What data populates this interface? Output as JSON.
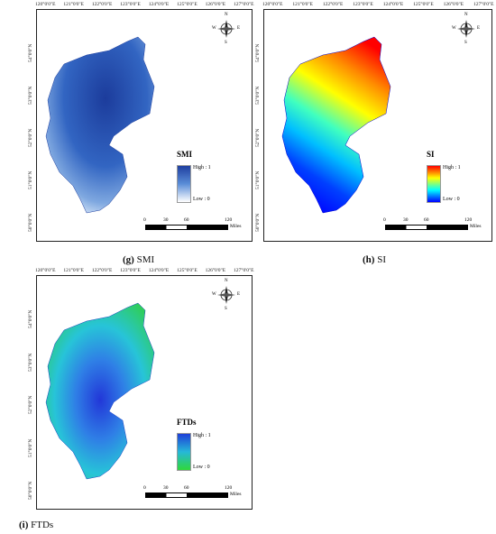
{
  "panels": [
    {
      "id": "g",
      "caption_letter": "(g)",
      "caption_text": " SMI",
      "legend_title": "SMI",
      "legend_high": "High : 1",
      "legend_low": "Low : 0",
      "colors": {
        "high": "#1f3fa0",
        "mid": "#5b8ed8",
        "low": "#ffffff"
      }
    },
    {
      "id": "h",
      "caption_letter": "(h)",
      "caption_text": " SI",
      "legend_title": "SI",
      "legend_high": "High : 1",
      "legend_low": "Low : 0",
      "colors": {
        "high": "#ff0000",
        "mid": "#ffff00",
        "low": "#0000ff"
      }
    },
    {
      "id": "i",
      "caption_letter": "(i)",
      "caption_text": " FTDs",
      "legend_title": "FTDs",
      "legend_high": "High : 1",
      "legend_low": "Low : 0",
      "colors": {
        "high": "#1e3fd8",
        "mid": "#26b8d8",
        "low": "#2fd83a"
      }
    }
  ],
  "x_ticks": [
    "120°0'0\"E",
    "121°0'0\"E",
    "122°0'0\"E",
    "123°0'0\"E",
    "124°0'0\"E",
    "125°0'0\"E",
    "126°0'0\"E",
    "127°0'0\"E"
  ],
  "y_ticks": [
    "54°0'0\"N",
    "53°0'0\"N",
    "52°0'0\"N",
    "51°0'0\"N",
    "50°0'0\"N"
  ],
  "scalebar": {
    "labels": [
      "0",
      "30",
      "60",
      "120"
    ],
    "unit": "Miles"
  },
  "compass": {
    "n": "N",
    "s": "S",
    "e": "E",
    "w": "W"
  }
}
